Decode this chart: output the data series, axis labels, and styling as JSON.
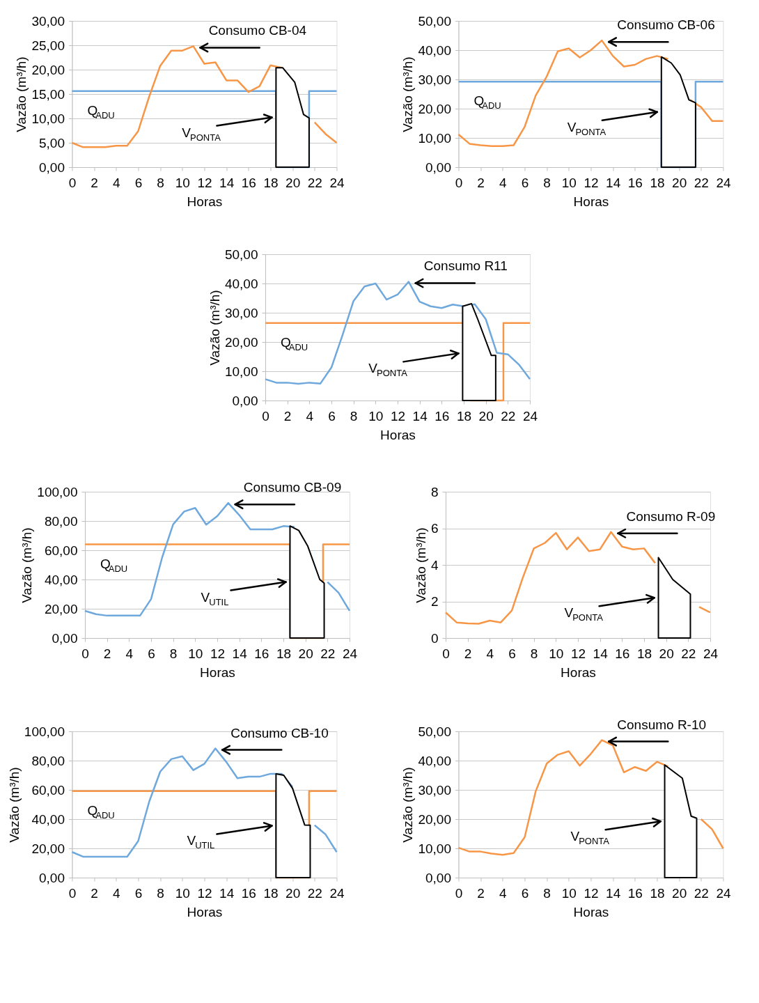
{
  "chart_data": [
    {
      "type": "line",
      "xlabel": "Horas",
      "ylabel": "Vazão (m³/h)",
      "grid": "y",
      "xlim": [
        0,
        24
      ],
      "xticks": [
        0,
        2,
        4,
        6,
        8,
        10,
        12,
        14,
        16,
        18,
        20,
        22,
        24
      ],
      "ylim": [
        0,
        30
      ],
      "yticks": [
        {
          "value": 0,
          "label": "0,00"
        },
        {
          "value": 5,
          "label": "5,00"
        },
        {
          "value": 10,
          "label": "10,00"
        },
        {
          "value": 15,
          "label": "15,00"
        },
        {
          "value": 20,
          "label": "20,00"
        },
        {
          "value": 25,
          "label": "25,00"
        },
        {
          "value": 30,
          "label": "30,00"
        }
      ],
      "x": [
        0,
        1,
        2,
        3,
        4,
        5,
        6,
        7,
        8,
        9,
        10,
        11,
        12,
        13,
        14,
        15,
        16,
        17,
        18,
        19,
        20,
        21,
        22,
        23,
        24
      ],
      "series": [
        {
          "type": "step",
          "name": "Q$_{ADU}$",
          "color": "#6fa8dc",
          "x": [
            0,
            18.5,
            21.5,
            24
          ],
          "values": [
            15.6,
            0,
            15.6,
            15.6
          ]
        },
        {
          "name": "Consumo CB-04",
          "color": "#f79646",
          "values": [
            5.0,
            4.1,
            4.1,
            4.1,
            4.4,
            4.4,
            7.4,
            14.5,
            20.8,
            23.9,
            23.9,
            24.8,
            21.2,
            21.5,
            17.8,
            17.8,
            15.4,
            16.6,
            20.9,
            20.4,
            null,
            null,
            9.2,
            6.8,
            5.0
          ]
        },
        {
          "type": "area",
          "name": "V$_{PONTA}$",
          "color": "#ffffff",
          "x": [
            18.5,
            19.1,
            20.2,
            21.0,
            21.5
          ],
          "values": [
            20.4,
            20.4,
            17.4,
            10.8,
            10.1
          ]
        }
      ]
    },
    {
      "type": "line",
      "xlabel": "Horas",
      "ylabel": "Vazão (m³/h)",
      "grid": "y",
      "xlim": [
        0,
        24
      ],
      "xticks": [
        0,
        2,
        4,
        6,
        8,
        10,
        12,
        14,
        16,
        18,
        20,
        22,
        24
      ],
      "ylim": [
        0,
        50
      ],
      "yticks": [
        {
          "value": 0,
          "label": "0,00"
        },
        {
          "value": 10,
          "label": "10,00"
        },
        {
          "value": 20,
          "label": "20,00"
        },
        {
          "value": 30,
          "label": "30,00"
        },
        {
          "value": 40,
          "label": "40,00"
        },
        {
          "value": 50,
          "label": "50,00"
        }
      ],
      "x": [
        0,
        1,
        2,
        3,
        4,
        5,
        6,
        7,
        8,
        9,
        10,
        11,
        12,
        13,
        14,
        15,
        16,
        17,
        18,
        19,
        20,
        21,
        22,
        23,
        24
      ],
      "series": [
        {
          "type": "step",
          "name": "Q$_{ADU}$",
          "color": "#6fa8dc",
          "x": [
            0,
            18.4,
            21.5,
            24
          ],
          "values": [
            29.2,
            0,
            29.2,
            29.2
          ]
        },
        {
          "name": "Consumo CB-06",
          "color": "#f79646",
          "values": [
            11.2,
            8.0,
            7.5,
            7.2,
            7.2,
            7.5,
            13.8,
            24.5,
            31.0,
            39.6,
            40.6,
            37.5,
            40.0,
            43.3,
            38.0,
            34.4,
            35.0,
            37.0,
            38.0,
            37.0,
            null,
            23.0,
            20.5,
            15.8,
            15.8
          ]
        },
        {
          "type": "area",
          "name": "V$_{PONTA}$",
          "color": "#ffffff",
          "x": [
            18.4,
            19.3,
            20.1,
            20.9,
            21.5
          ],
          "values": [
            37.7,
            35.6,
            31.6,
            23.0,
            22.0
          ]
        }
      ]
    },
    {
      "type": "line",
      "xlabel": "Horas",
      "ylabel": "Vazão (m³/h)",
      "grid": "y",
      "xlim": [
        0,
        24
      ],
      "xticks": [
        0,
        2,
        4,
        6,
        8,
        10,
        12,
        14,
        16,
        18,
        20,
        22,
        24
      ],
      "ylim": [
        0,
        50
      ],
      "yticks": [
        {
          "value": 0,
          "label": "0,00"
        },
        {
          "value": 10,
          "label": "10,00"
        },
        {
          "value": 20,
          "label": "20,00"
        },
        {
          "value": 30,
          "label": "30,00"
        },
        {
          "value": 40,
          "label": "40,00"
        },
        {
          "value": 50,
          "label": "50,00"
        }
      ],
      "x": [
        0,
        1,
        2,
        3,
        4,
        5,
        6,
        7,
        8,
        9,
        10,
        11,
        12,
        13,
        14,
        15,
        16,
        17,
        18,
        19,
        20,
        21,
        22,
        23,
        24
      ],
      "series": [
        {
          "type": "step",
          "name": "Q$_{ADU}$",
          "color": "#f79646",
          "x": [
            0,
            18.6,
            21.6,
            24
          ],
          "values": [
            26.5,
            0,
            26.5,
            26.5
          ]
        },
        {
          "name": "Consumo R11",
          "color": "#6fa8dc",
          "values": [
            7.3,
            6.1,
            6.1,
            5.7,
            6.1,
            5.8,
            11.3,
            22.3,
            34.0,
            39.0,
            40.0,
            34.5,
            36.2,
            40.6,
            33.8,
            32.2,
            31.6,
            32.8,
            32.2,
            32.9,
            27.8,
            16.3,
            15.8,
            12.3,
            7.3
          ]
        },
        {
          "type": "area",
          "name": "V$_{PONTA}$",
          "color": "#ffffff",
          "x": [
            17.9,
            18.7,
            19.3,
            20.5,
            20.9
          ],
          "values": [
            32.2,
            33.1,
            27.5,
            15.4,
            15.4
          ]
        }
      ]
    },
    {
      "type": "line",
      "xlabel": "Horas",
      "ylabel": "Vazão (m³/h)",
      "grid": "y",
      "xlim": [
        0,
        24
      ],
      "xticks": [
        0,
        2,
        4,
        6,
        8,
        10,
        12,
        14,
        16,
        18,
        20,
        22,
        24
      ],
      "ylim": [
        0,
        100
      ],
      "yticks": [
        {
          "value": 0,
          "label": "0,00"
        },
        {
          "value": 20,
          "label": "20,00"
        },
        {
          "value": 40,
          "label": "40,00"
        },
        {
          "value": 60,
          "label": "60,00"
        },
        {
          "value": 80,
          "label": "80,00"
        },
        {
          "value": 100,
          "label": "100,00"
        }
      ],
      "x": [
        0,
        1,
        2,
        3,
        4,
        5,
        6,
        7,
        8,
        9,
        10,
        11,
        12,
        13,
        14,
        15,
        16,
        17,
        18,
        19,
        20,
        21,
        22,
        23,
        24
      ],
      "series": [
        {
          "type": "step",
          "name": "Q$_{ADU}$",
          "color": "#f79646",
          "x": [
            0,
            18.6,
            21.6,
            24
          ],
          "values": [
            64.0,
            0,
            64.0,
            64.0
          ]
        },
        {
          "name": "Consumo CB-09",
          "color": "#6fa8dc",
          "values": [
            18.6,
            16.3,
            15.3,
            15.3,
            15.3,
            15.3,
            26.6,
            55.0,
            77.7,
            86.5,
            88.9,
            77.5,
            83.3,
            92.3,
            84.0,
            74.3,
            74.3,
            74.3,
            76.5,
            76.0,
            null,
            null,
            38.3,
            31.0,
            18.6
          ]
        },
        {
          "type": "area",
          "name": "V$_{UTIL}$",
          "color": "#ffffff",
          "x": [
            18.6,
            19.4,
            20.2,
            21.3,
            21.7
          ],
          "values": [
            76.6,
            73.5,
            63.0,
            40.0,
            37.5
          ]
        }
      ]
    },
    {
      "type": "line",
      "xlabel": "Horas",
      "ylabel": "Vazão (m³/h)",
      "grid": "y",
      "xlim": [
        0,
        24
      ],
      "xticks": [
        0,
        2,
        4,
        6,
        8,
        10,
        12,
        14,
        16,
        18,
        20,
        22,
        24
      ],
      "ylim": [
        0,
        8
      ],
      "yticks": [
        0,
        2,
        4,
        6,
        8
      ],
      "x": [
        0,
        1,
        2,
        3,
        4,
        5,
        6,
        7,
        8,
        9,
        10,
        11,
        12,
        13,
        14,
        15,
        16,
        17,
        18,
        19,
        20,
        21,
        22,
        23,
        24
      ],
      "series": [
        {
          "name": "Consumo R-09",
          "color": "#f79646",
          "values": [
            1.4,
            0.85,
            0.8,
            0.78,
            0.95,
            0.85,
            1.5,
            3.3,
            4.9,
            5.2,
            5.75,
            4.85,
            5.5,
            4.75,
            4.85,
            5.8,
            5.0,
            4.85,
            4.9,
            4.1,
            null,
            null,
            null,
            1.7,
            1.4
          ]
        },
        {
          "type": "area",
          "name": "V$_{PONTA}$",
          "color": "#ffffff",
          "x": [
            19.3,
            20.6,
            22.2
          ],
          "values": [
            4.4,
            3.2,
            2.4
          ]
        }
      ]
    },
    {
      "type": "line",
      "xlabel": "Horas",
      "ylabel": "Vazão (m³/h)",
      "grid": "y",
      "xlim": [
        0,
        24
      ],
      "xticks": [
        0,
        2,
        4,
        6,
        8,
        10,
        12,
        14,
        16,
        18,
        20,
        22,
        24
      ],
      "ylim": [
        0,
        100
      ],
      "yticks": [
        {
          "value": 0,
          "label": "0,00"
        },
        {
          "value": 20,
          "label": "20,00"
        },
        {
          "value": 40,
          "label": "40,00"
        },
        {
          "value": 60,
          "label": "60,00"
        },
        {
          "value": 80,
          "label": "80,00"
        },
        {
          "value": 100,
          "label": "100,00"
        }
      ],
      "x": [
        0,
        1,
        2,
        3,
        4,
        5,
        6,
        7,
        8,
        9,
        10,
        11,
        12,
        13,
        14,
        15,
        16,
        17,
        18,
        19,
        20,
        21,
        22,
        23,
        24
      ],
      "series": [
        {
          "type": "step",
          "name": "Q$_{ADU}$",
          "color": "#f79646",
          "x": [
            0,
            18.5,
            21.5,
            24
          ],
          "values": [
            59.2,
            0,
            59.2,
            59.2
          ]
        },
        {
          "name": "Consumo CB-10",
          "color": "#6fa8dc",
          "values": [
            17.5,
            14.3,
            14.3,
            14.3,
            14.3,
            14.3,
            25.0,
            52.0,
            72.5,
            81.0,
            83.0,
            73.5,
            77.8,
            88.3,
            79.0,
            68.0,
            69.0,
            69.0,
            71.0,
            71.0,
            62.0,
            null,
            35.8,
            29.5,
            17.5
          ]
        },
        {
          "type": "area",
          "name": "V$_{UTIL}$",
          "color": "#ffffff",
          "x": [
            18.5,
            19.2,
            20.0,
            21.1,
            21.6
          ],
          "values": [
            71.0,
            70.0,
            61.0,
            36.0,
            35.8
          ]
        }
      ]
    },
    {
      "type": "line",
      "xlabel": "Horas",
      "ylabel": "Vazão (m³/h)",
      "grid": "y",
      "xlim": [
        0,
        24
      ],
      "xticks": [
        0,
        2,
        4,
        6,
        8,
        10,
        12,
        14,
        16,
        18,
        20,
        22,
        24
      ],
      "ylim": [
        0,
        50
      ],
      "yticks": [
        {
          "value": 0,
          "label": "0,00"
        },
        {
          "value": 10,
          "label": "10,00"
        },
        {
          "value": 20,
          "label": "20,00"
        },
        {
          "value": 30,
          "label": "30,00"
        },
        {
          "value": 40,
          "label": "40,00"
        },
        {
          "value": 50,
          "label": "50,00"
        }
      ],
      "x": [
        0,
        1,
        2,
        3,
        4,
        5,
        6,
        7,
        8,
        9,
        10,
        11,
        12,
        13,
        14,
        15,
        16,
        17,
        18,
        19,
        20,
        21,
        22,
        23,
        24
      ],
      "series": [
        {
          "name": "Consumo R-10",
          "color": "#f79646",
          "values": [
            10.2,
            8.9,
            8.9,
            8.2,
            7.8,
            8.4,
            13.8,
            29.5,
            39.0,
            42.0,
            43.2,
            38.3,
            42.3,
            47.0,
            45.2,
            36.0,
            37.8,
            36.5,
            39.6,
            38.0,
            null,
            null,
            20.0,
            16.5,
            10.0
          ]
        },
        {
          "type": "area",
          "name": "V$_{PONTA}$",
          "color": "#ffffff",
          "x": [
            18.7,
            20.3,
            21.1,
            21.6
          ],
          "values": [
            38.5,
            34.0,
            21.0,
            20.3
          ]
        }
      ]
    }
  ]
}
